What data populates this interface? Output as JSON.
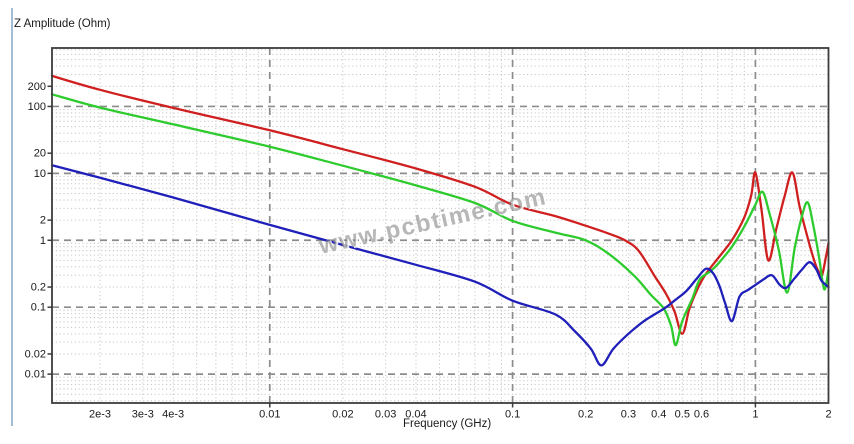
{
  "window": {
    "y_axis_title": "Z Amplitude (Ohm)",
    "x_axis_title": "Frequency (GHz)",
    "watermark": "www.pcbtime.com"
  },
  "colors": {
    "red_series": "#cf1f1f",
    "green_series": "#2ecb2e",
    "blue_series": "#1f1fba",
    "major_grid": "#8c8c8c",
    "minor_grid": "#c6c6c6",
    "frame": "#3c3c3c",
    "tick": "#3c3c3c",
    "left_border": "#a3bcd6",
    "watermark_gray": "#7d7d7d"
  },
  "chart_data": {
    "type": "line",
    "title": "",
    "xlabel": "Frequency (GHz)",
    "ylabel": "Z Amplitude (Ohm)",
    "x_scale": "log",
    "y_scale": "log",
    "x_range": [
      0.001268,
      2
    ],
    "y_range": [
      0.0037,
      747
    ],
    "grid": "dashed gray lines at log decades, dotted light-gray minor lines at 2-9 subdivisions",
    "legend": "none",
    "x_ticks": [
      {
        "v": 0.002,
        "label": "2e-3"
      },
      {
        "v": 0.003,
        "label": "3e-3"
      },
      {
        "v": 0.004,
        "label": "4e-3"
      },
      {
        "v": 0.01,
        "label": "0.01"
      },
      {
        "v": 0.02,
        "label": "0.02"
      },
      {
        "v": 0.03,
        "label": "0.03"
      },
      {
        "v": 0.04,
        "label": "0.04"
      },
      {
        "v": 0.1,
        "label": "0.1"
      },
      {
        "v": 0.2,
        "label": "0.2"
      },
      {
        "v": 0.3,
        "label": "0.3"
      },
      {
        "v": 0.4,
        "label": "0.4"
      },
      {
        "v": 0.5,
        "label": "0.5"
      },
      {
        "v": 0.6,
        "label": "0.6"
      },
      {
        "v": 1,
        "label": "1"
      },
      {
        "v": 2,
        "label": "2"
      }
    ],
    "y_ticks": [
      {
        "v": 200,
        "label": "200"
      },
      {
        "v": 100,
        "label": "100"
      },
      {
        "v": 20,
        "label": "20"
      },
      {
        "v": 10,
        "label": "10"
      },
      {
        "v": 2,
        "label": "2"
      },
      {
        "v": 1,
        "label": "1"
      },
      {
        "v": 0.2,
        "label": "0.2"
      },
      {
        "v": 0.1,
        "label": "0.1"
      },
      {
        "v": 0.02,
        "label": "0.02"
      },
      {
        "v": 0.01,
        "label": "0.01"
      }
    ],
    "series": [
      {
        "name": "red-curve",
        "color": "#cf1f1f",
        "points": [
          [
            0.001268,
            286
          ],
          [
            0.002,
            177
          ],
          [
            0.004,
            95
          ],
          [
            0.01,
            44
          ],
          [
            0.02,
            23
          ],
          [
            0.04,
            11.8
          ],
          [
            0.07,
            6.3
          ],
          [
            0.1,
            3.4
          ],
          [
            0.15,
            2.3
          ],
          [
            0.2,
            1.65
          ],
          [
            0.25,
            1.25
          ],
          [
            0.29,
            1.0
          ],
          [
            0.33,
            0.7
          ],
          [
            0.385,
            0.29
          ],
          [
            0.43,
            0.155
          ],
          [
            0.465,
            0.085
          ],
          [
            0.5,
            0.04
          ],
          [
            0.535,
            0.095
          ],
          [
            0.575,
            0.18
          ],
          [
            0.62,
            0.3
          ],
          [
            0.69,
            0.5
          ],
          [
            0.8,
            1.0
          ],
          [
            0.9,
            2.2
          ],
          [
            0.96,
            4.6
          ],
          [
            1.0,
            10.3
          ],
          [
            1.06,
            2.8
          ],
          [
            1.13,
            0.5
          ],
          [
            1.22,
            1.5
          ],
          [
            1.32,
            4.6
          ],
          [
            1.42,
            10.3
          ],
          [
            1.52,
            3.2
          ],
          [
            1.64,
            1.1
          ],
          [
            1.74,
            0.52
          ],
          [
            1.82,
            0.34
          ],
          [
            1.88,
            0.3
          ],
          [
            1.95,
            0.55
          ],
          [
            2.0,
            0.9
          ]
        ]
      },
      {
        "name": "green-curve",
        "color": "#2ecb2e",
        "points": [
          [
            0.001268,
            152
          ],
          [
            0.002,
            96
          ],
          [
            0.004,
            54
          ],
          [
            0.01,
            25
          ],
          [
            0.02,
            13
          ],
          [
            0.04,
            6.6
          ],
          [
            0.07,
            3.6
          ],
          [
            0.1,
            1.95
          ],
          [
            0.15,
            1.3
          ],
          [
            0.2,
            1.0
          ],
          [
            0.25,
            0.62
          ],
          [
            0.318,
            0.29
          ],
          [
            0.37,
            0.155
          ],
          [
            0.42,
            0.095
          ],
          [
            0.45,
            0.052
          ],
          [
            0.47,
            0.027
          ],
          [
            0.5,
            0.062
          ],
          [
            0.55,
            0.135
          ],
          [
            0.59,
            0.26
          ],
          [
            0.65,
            0.34
          ],
          [
            0.7,
            0.44
          ],
          [
            0.8,
            0.8
          ],
          [
            0.9,
            1.6
          ],
          [
            1.0,
            3.4
          ],
          [
            1.07,
            5.3
          ],
          [
            1.14,
            2.6
          ],
          [
            1.25,
            0.7
          ],
          [
            1.35,
            0.165
          ],
          [
            1.45,
            0.75
          ],
          [
            1.55,
            2.2
          ],
          [
            1.64,
            3.7
          ],
          [
            1.73,
            1.7
          ],
          [
            1.83,
            0.55
          ],
          [
            1.92,
            0.185
          ],
          [
            2.0,
            0.36
          ]
        ]
      },
      {
        "name": "blue-curve",
        "color": "#1f1fba",
        "points": [
          [
            0.001268,
            13.2
          ],
          [
            0.002,
            8.6
          ],
          [
            0.004,
            4.35
          ],
          [
            0.01,
            1.7
          ],
          [
            0.02,
            0.85
          ],
          [
            0.04,
            0.43
          ],
          [
            0.07,
            0.24
          ],
          [
            0.1,
            0.125
          ],
          [
            0.15,
            0.078
          ],
          [
            0.18,
            0.044
          ],
          [
            0.21,
            0.024
          ],
          [
            0.232,
            0.0135
          ],
          [
            0.26,
            0.024
          ],
          [
            0.3,
            0.04
          ],
          [
            0.35,
            0.063
          ],
          [
            0.42,
            0.095
          ],
          [
            0.47,
            0.13
          ],
          [
            0.52,
            0.175
          ],
          [
            0.57,
            0.26
          ],
          [
            0.625,
            0.375
          ],
          [
            0.67,
            0.32
          ],
          [
            0.71,
            0.21
          ],
          [
            0.75,
            0.115
          ],
          [
            0.8,
            0.062
          ],
          [
            0.86,
            0.144
          ],
          [
            0.93,
            0.18
          ],
          [
            1.0,
            0.215
          ],
          [
            1.08,
            0.26
          ],
          [
            1.17,
            0.3
          ],
          [
            1.26,
            0.215
          ],
          [
            1.34,
            0.195
          ],
          [
            1.45,
            0.27
          ],
          [
            1.55,
            0.36
          ],
          [
            1.67,
            0.47
          ],
          [
            1.78,
            0.37
          ],
          [
            1.87,
            0.25
          ],
          [
            2.0,
            0.2
          ]
        ]
      }
    ]
  }
}
